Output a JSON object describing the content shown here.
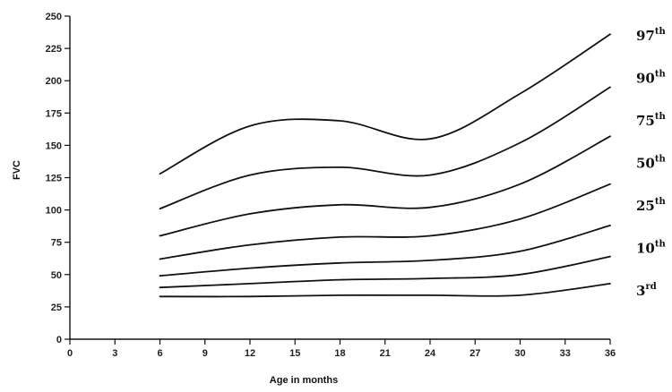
{
  "chart_data": {
    "type": "line",
    "title": "",
    "xlabel": "Age in months",
    "ylabel": "FVC",
    "xlim": [
      0,
      36
    ],
    "ylim": [
      0,
      250
    ],
    "x_ticks": [
      "0",
      "3",
      "6",
      "9",
      "12",
      "15",
      "18",
      "21",
      "24",
      "27",
      "30",
      "33",
      "36"
    ],
    "y_ticks": [
      "0",
      "25",
      "50",
      "75",
      "100",
      "125",
      "150",
      "175",
      "200",
      "225",
      "250"
    ],
    "grid": false,
    "x": [
      6,
      12,
      18,
      24,
      30,
      36
    ],
    "series": [
      {
        "name": "97",
        "suffix": "th",
        "values": [
          128,
          165,
          169,
          155,
          190,
          236
        ]
      },
      {
        "name": "90",
        "suffix": "th",
        "values": [
          101,
          127,
          133,
          127,
          152,
          195
        ]
      },
      {
        "name": "75",
        "suffix": "th",
        "values": [
          80,
          97,
          104,
          102,
          120,
          157
        ]
      },
      {
        "name": "50",
        "suffix": "th",
        "values": [
          62,
          73,
          79,
          80,
          93,
          120
        ]
      },
      {
        "name": "25",
        "suffix": "th",
        "values": [
          49,
          55,
          59,
          61,
          68,
          88
        ]
      },
      {
        "name": "10",
        "suffix": "th",
        "values": [
          40,
          43,
          46,
          47,
          50,
          64
        ]
      },
      {
        "name": "3",
        "suffix": "rd",
        "values": [
          33,
          33,
          34,
          34,
          34,
          43
        ]
      }
    ]
  }
}
